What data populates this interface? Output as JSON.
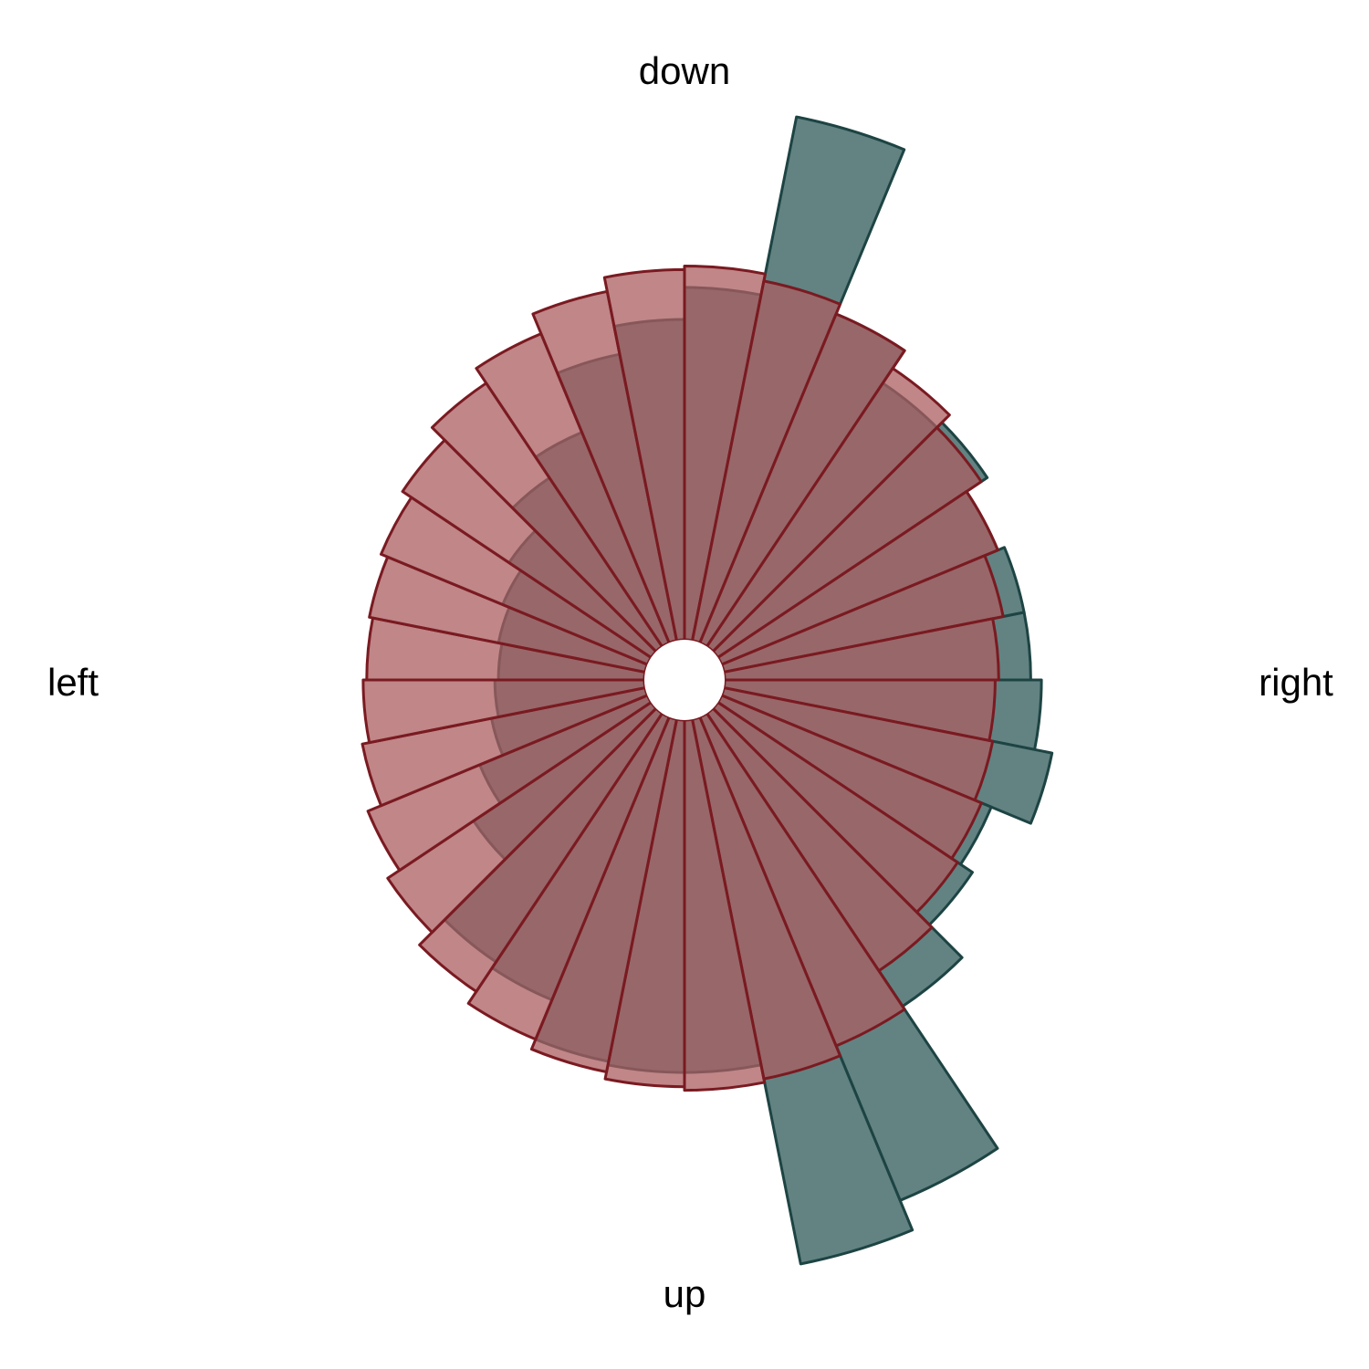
{
  "chart_data": {
    "type": "polar-bar",
    "bins": 32,
    "directions": {
      "top": "down",
      "right": "right",
      "bottom": "up",
      "left": "left"
    },
    "series": [
      {
        "color": "#628382",
        "edge": "#1d4443",
        "values": [
          0.89,
          0.94,
          0.82,
          0.86,
          0.99,
          1.47,
          1.56,
          0.99,
          0.99,
          0.98,
          0.86,
          0.84,
          0.6,
          0.51,
          0.44,
          0.42,
          0.41,
          0.42,
          0.44,
          0.48,
          0.57,
          0.64,
          0.82,
          0.9,
          0.99,
          1.5,
          1.0,
          0.89,
          0.91,
          0.84,
          0.86,
          0.86
        ]
      },
      {
        "color": "#ab5d60",
        "edge": "#7a1a21",
        "values": [
          0.76,
          0.77,
          0.79,
          0.81,
          0.87,
          1.0,
          1.03,
          1.04,
          1.03,
          1.01,
          0.98,
          0.94,
          0.89,
          0.85,
          0.81,
          0.79,
          0.78,
          0.79,
          0.81,
          0.84,
          0.89,
          0.94,
          1.0,
          1.04,
          1.05,
          1.03,
          1.0,
          0.94,
          0.89,
          0.84,
          0.8,
          0.77
        ]
      }
    ],
    "grid": false,
    "legend": "none"
  }
}
